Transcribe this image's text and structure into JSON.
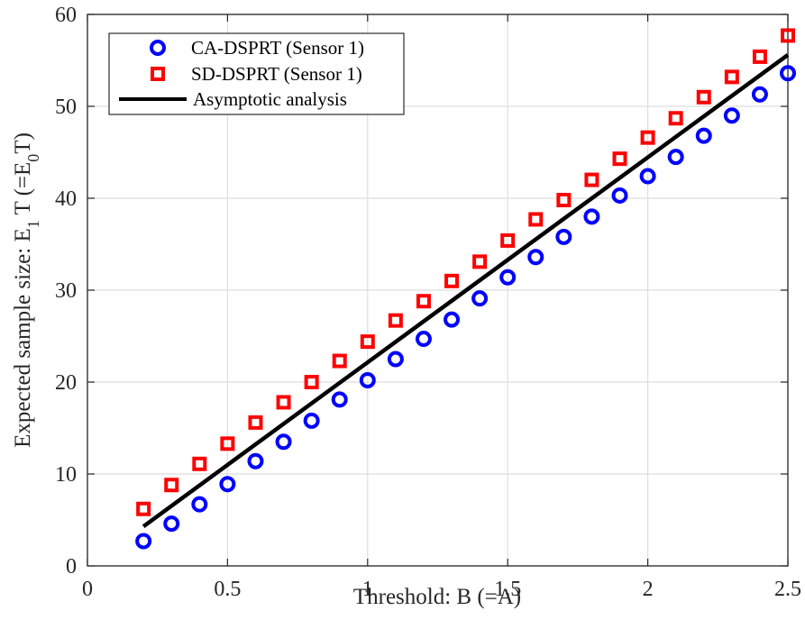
{
  "chart_data": {
    "type": "scatter",
    "x": [
      0.2,
      0.3,
      0.4,
      0.5,
      0.6,
      0.7,
      0.8,
      0.9,
      1.0,
      1.1,
      1.2,
      1.3,
      1.4,
      1.5,
      1.6,
      1.7,
      1.8,
      1.9,
      2.0,
      2.1,
      2.2,
      2.3,
      2.4,
      2.5
    ],
    "series": [
      {
        "name": "CA-DSPRT (Sensor 1)",
        "marker": "circle",
        "color": "#0000ff",
        "values": [
          2.7,
          4.6,
          6.7,
          8.9,
          11.4,
          13.5,
          15.8,
          18.1,
          20.2,
          22.5,
          24.7,
          26.8,
          29.1,
          31.4,
          33.6,
          35.8,
          38.0,
          40.3,
          42.4,
          44.5,
          46.8,
          49.0,
          51.3,
          53.6
        ]
      },
      {
        "name": "SD-DSPRT (Sensor 1)",
        "marker": "square",
        "color": "#ff0000",
        "values": [
          6.2,
          8.8,
          11.1,
          13.3,
          15.6,
          17.8,
          20.0,
          22.3,
          24.4,
          26.7,
          28.8,
          31.0,
          33.1,
          35.4,
          37.7,
          39.8,
          42.0,
          44.3,
          46.6,
          48.7,
          51.0,
          53.2,
          55.4,
          57.7
        ]
      },
      {
        "name": "Asymptotic analysis",
        "marker": "line",
        "color": "#000000",
        "x": [
          0.2,
          2.5
        ],
        "values": [
          4.3,
          55.6
        ]
      }
    ],
    "xlabel": "Threshold: B (=A)",
    "ylabel": {
      "prefix": "Expected sample size: E",
      "sub1": "1",
      "mid": " T (=E",
      "sub2": "0",
      "suffix": "T)"
    },
    "xlim": [
      0,
      2.5
    ],
    "ylim": [
      0,
      60
    ],
    "xticks": [
      0,
      0.5,
      1,
      1.5,
      2,
      2.5
    ],
    "xtick_labels": [
      "0",
      "0.5",
      "1",
      "1.5",
      "2",
      "2.5"
    ],
    "yticks": [
      0,
      10,
      20,
      30,
      40,
      50,
      60
    ],
    "ytick_labels": [
      "0",
      "10",
      "20",
      "30",
      "40",
      "50",
      "60"
    ],
    "grid": true,
    "legend_position": "top-left"
  }
}
